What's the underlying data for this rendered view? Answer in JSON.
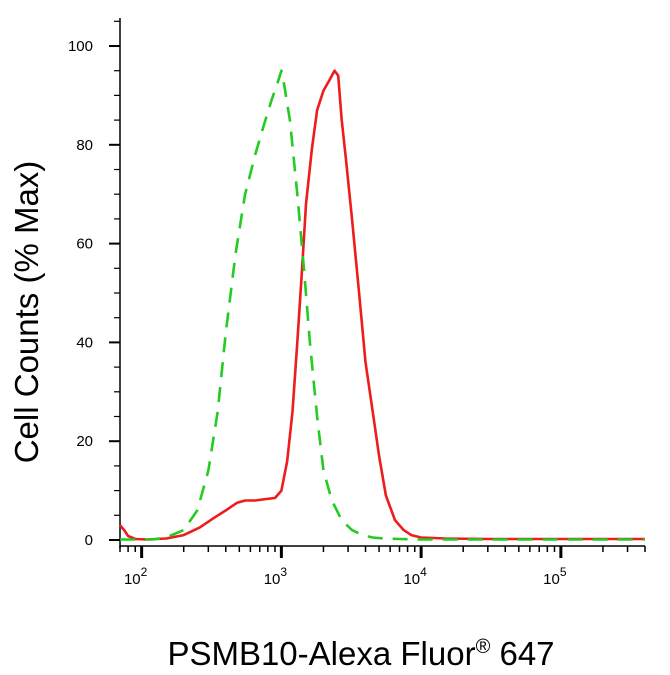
{
  "chart_data": {
    "type": "line",
    "title": "",
    "xlabel_main": "PSMB10-Alexa Fluor",
    "xlabel_reg": "®",
    "xlabel_tail": " 647",
    "ylabel": "Cell Counts (% Max)",
    "x_scale": "log",
    "x_base": "10",
    "xlim": [
      70,
      400000
    ],
    "ylim": [
      0,
      100
    ],
    "y_ticks": [
      0,
      20,
      40,
      60,
      80,
      100
    ],
    "y_tick_labels": [
      "0",
      "20",
      "40",
      "60",
      "80",
      "100"
    ],
    "x_tick_exponents": [
      "2",
      "3",
      "4",
      "5"
    ],
    "x_tick_values": [
      100,
      1000,
      10000,
      100000
    ],
    "grid": false,
    "legend": "none",
    "series": [
      {
        "color": "#ee1c1c",
        "dash": "solid",
        "x": [
          70,
          75,
          80,
          90,
          110,
          150,
          200,
          260,
          330,
          400,
          480,
          550,
          650,
          780,
          900,
          1000,
          1100,
          1200,
          1300,
          1400,
          1500,
          1650,
          1800,
          2000,
          2200,
          2400,
          2550,
          2700,
          2900,
          3200,
          3600,
          4000,
          4500,
          5000,
          5600,
          6500,
          7500,
          8500,
          10000,
          15000,
          30000,
          100000,
          400000
        ],
        "y": [
          3,
          2,
          0.8,
          0.2,
          0.1,
          0.3,
          1,
          2.5,
          4.5,
          6,
          7.5,
          8,
          8,
          8.3,
          8.5,
          10,
          16,
          26,
          40,
          54,
          68,
          79,
          87,
          91,
          93,
          95,
          94,
          85,
          77,
          65,
          50,
          36,
          26,
          17,
          9,
          4,
          2,
          1,
          0.5,
          0.3,
          0.2,
          0.2,
          0.2
        ]
      },
      {
        "color": "#22cc22",
        "dash": "dashed",
        "x": [
          70,
          120,
          150,
          200,
          250,
          300,
          350,
          400,
          470,
          550,
          650,
          750,
          850,
          950,
          1000,
          1050,
          1150,
          1300,
          1450,
          1600,
          1800,
          2000,
          2300,
          2700,
          3200,
          3800,
          4500,
          5500,
          7000,
          10000,
          30000,
          100000,
          400000
        ],
        "y": [
          0.1,
          0.1,
          0.5,
          2,
          6,
          14,
          26,
          42,
          58,
          70,
          78,
          84,
          89,
          93,
          95,
          92,
          85,
          70,
          55,
          40,
          25,
          14,
          8,
          4,
          2,
          1,
          0.5,
          0.3,
          0.2,
          0.1,
          0.1,
          0.1,
          0.1
        ]
      }
    ]
  }
}
